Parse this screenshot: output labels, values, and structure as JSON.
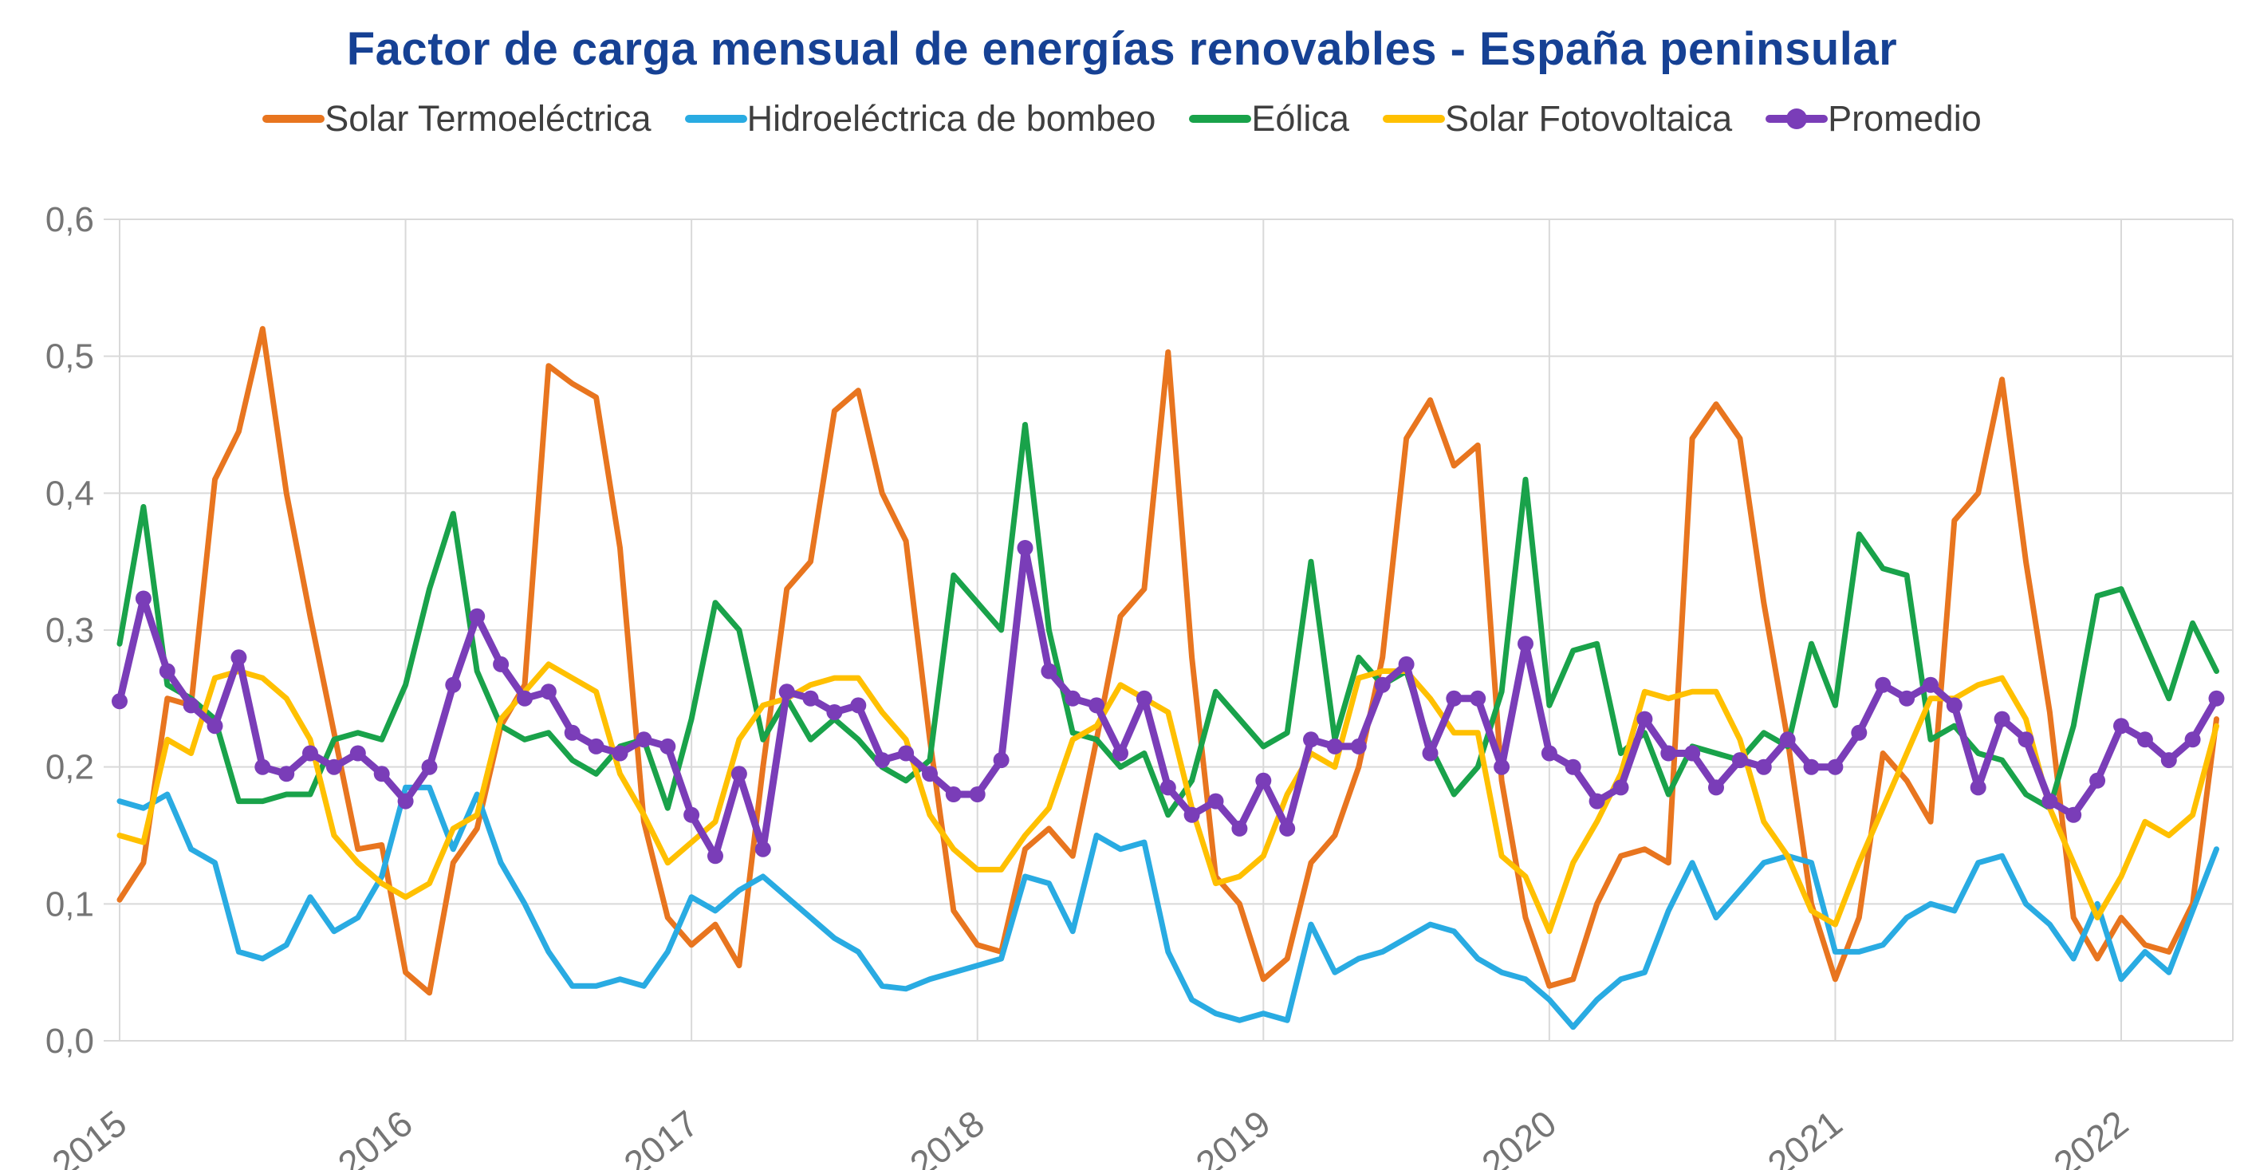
{
  "title": {
    "text": "Factor de carga mensual de energías renovables - España peninsular",
    "color": "#164194"
  },
  "axis": {
    "tick_color": "#757575",
    "grid_color": "#d9d9d9"
  },
  "chart_data": {
    "type": "line",
    "title": "Factor de carga mensual de energías renovables - España peninsular",
    "xlabel": "",
    "ylabel": "",
    "x_tick_labels": [
      "2015",
      "2016",
      "2017",
      "2018",
      "2019",
      "2020",
      "2021",
      "2022"
    ],
    "y_tick_labels": [
      "0,0",
      "0,1",
      "0,2",
      "0,3",
      "0,4",
      "0,5",
      "0,6"
    ],
    "y_ticks": [
      0,
      0.1,
      0.2,
      0.3,
      0.4,
      0.5,
      0.6
    ],
    "ylim": [
      0,
      0.6
    ],
    "x_start": "2015-01",
    "x_end": "2022-05",
    "months_per_tick": 12,
    "grid": true,
    "legend_position": "top",
    "series": [
      {
        "name": "Solar Termoeléctrica",
        "color": "#E8751F",
        "marker": false,
        "values": [
          0.103,
          0.13,
          0.25,
          0.245,
          0.41,
          0.445,
          0.52,
          0.4,
          0.31,
          0.225,
          0.14,
          0.143,
          0.05,
          0.035,
          0.13,
          0.155,
          0.23,
          0.26,
          0.493,
          0.48,
          0.47,
          0.36,
          0.16,
          0.09,
          0.07,
          0.085,
          0.055,
          0.2,
          0.33,
          0.35,
          0.46,
          0.475,
          0.4,
          0.365,
          0.22,
          0.095,
          0.07,
          0.065,
          0.14,
          0.155,
          0.135,
          0.22,
          0.31,
          0.33,
          0.503,
          0.28,
          0.12,
          0.1,
          0.045,
          0.06,
          0.13,
          0.15,
          0.2,
          0.28,
          0.44,
          0.468,
          0.42,
          0.435,
          0.19,
          0.09,
          0.04,
          0.045,
          0.1,
          0.135,
          0.14,
          0.13,
          0.44,
          0.465,
          0.44,
          0.32,
          0.22,
          0.1,
          0.045,
          0.09,
          0.21,
          0.19,
          0.16,
          0.38,
          0.4,
          0.483,
          0.35,
          0.24,
          0.09,
          0.06,
          0.09,
          0.07,
          0.065,
          0.1,
          0.235
        ]
      },
      {
        "name": "Hidroeléctrica de bombeo",
        "color": "#29ABE2",
        "marker": false,
        "values": [
          0.175,
          0.17,
          0.18,
          0.14,
          0.13,
          0.065,
          0.06,
          0.07,
          0.105,
          0.08,
          0.09,
          0.12,
          0.185,
          0.185,
          0.14,
          0.18,
          0.13,
          0.1,
          0.065,
          0.04,
          0.04,
          0.045,
          0.04,
          0.065,
          0.105,
          0.095,
          0.11,
          0.12,
          0.105,
          0.09,
          0.075,
          0.065,
          0.04,
          0.038,
          0.045,
          0.05,
          0.055,
          0.06,
          0.12,
          0.115,
          0.08,
          0.15,
          0.14,
          0.145,
          0.065,
          0.03,
          0.02,
          0.015,
          0.02,
          0.015,
          0.085,
          0.05,
          0.06,
          0.065,
          0.075,
          0.085,
          0.08,
          0.06,
          0.05,
          0.045,
          0.03,
          0.01,
          0.03,
          0.045,
          0.05,
          0.095,
          0.13,
          0.09,
          0.11,
          0.13,
          0.135,
          0.13,
          0.065,
          0.065,
          0.07,
          0.09,
          0.1,
          0.095,
          0.13,
          0.135,
          0.1,
          0.085,
          0.06,
          0.1,
          0.045,
          0.065,
          0.05,
          0.095,
          0.14
        ]
      },
      {
        "name": "Eólica",
        "color": "#19A24A",
        "marker": false,
        "values": [
          0.29,
          0.39,
          0.26,
          0.25,
          0.235,
          0.175,
          0.175,
          0.18,
          0.18,
          0.22,
          0.225,
          0.22,
          0.26,
          0.33,
          0.385,
          0.27,
          0.23,
          0.22,
          0.225,
          0.205,
          0.195,
          0.215,
          0.22,
          0.17,
          0.235,
          0.32,
          0.3,
          0.22,
          0.25,
          0.22,
          0.235,
          0.22,
          0.2,
          0.19,
          0.205,
          0.34,
          0.32,
          0.3,
          0.45,
          0.3,
          0.225,
          0.22,
          0.2,
          0.21,
          0.165,
          0.19,
          0.255,
          0.235,
          0.215,
          0.225,
          0.35,
          0.22,
          0.28,
          0.26,
          0.27,
          0.215,
          0.18,
          0.2,
          0.255,
          0.41,
          0.245,
          0.285,
          0.29,
          0.21,
          0.225,
          0.18,
          0.215,
          0.21,
          0.205,
          0.225,
          0.215,
          0.29,
          0.245,
          0.37,
          0.345,
          0.34,
          0.22,
          0.23,
          0.21,
          0.205,
          0.18,
          0.17,
          0.23,
          0.325,
          0.33,
          0.29,
          0.25,
          0.305,
          0.27
        ]
      },
      {
        "name": "Solar Fotovoltaica",
        "color": "#FFC000",
        "marker": false,
        "values": [
          0.15,
          0.145,
          0.22,
          0.21,
          0.265,
          0.27,
          0.265,
          0.25,
          0.22,
          0.15,
          0.13,
          0.115,
          0.105,
          0.115,
          0.155,
          0.165,
          0.235,
          0.255,
          0.275,
          0.265,
          0.255,
          0.195,
          0.165,
          0.13,
          0.145,
          0.16,
          0.22,
          0.245,
          0.25,
          0.26,
          0.265,
          0.265,
          0.24,
          0.22,
          0.165,
          0.14,
          0.125,
          0.125,
          0.15,
          0.17,
          0.22,
          0.23,
          0.26,
          0.25,
          0.24,
          0.17,
          0.115,
          0.12,
          0.135,
          0.18,
          0.21,
          0.2,
          0.265,
          0.27,
          0.27,
          0.25,
          0.225,
          0.225,
          0.135,
          0.12,
          0.08,
          0.13,
          0.16,
          0.195,
          0.255,
          0.25,
          0.255,
          0.255,
          0.22,
          0.16,
          0.135,
          0.095,
          0.085,
          0.13,
          0.17,
          0.21,
          0.25,
          0.25,
          0.26,
          0.265,
          0.235,
          0.17,
          0.13,
          0.09,
          0.12,
          0.16,
          0.15,
          0.165,
          0.23
        ]
      },
      {
        "name": "Promedio",
        "color": "#7A3DB8",
        "marker": true,
        "values": [
          0.248,
          0.323,
          0.27,
          0.245,
          0.23,
          0.28,
          0.2,
          0.195,
          0.21,
          0.2,
          0.21,
          0.195,
          0.175,
          0.2,
          0.26,
          0.31,
          0.275,
          0.25,
          0.255,
          0.225,
          0.215,
          0.21,
          0.22,
          0.215,
          0.165,
          0.135,
          0.195,
          0.14,
          0.255,
          0.25,
          0.24,
          0.245,
          0.205,
          0.21,
          0.195,
          0.18,
          0.18,
          0.205,
          0.36,
          0.27,
          0.25,
          0.245,
          0.21,
          0.25,
          0.185,
          0.165,
          0.175,
          0.155,
          0.19,
          0.155,
          0.22,
          0.215,
          0.215,
          0.26,
          0.275,
          0.21,
          0.25,
          0.25,
          0.2,
          0.29,
          0.21,
          0.2,
          0.175,
          0.185,
          0.235,
          0.21,
          0.21,
          0.185,
          0.205,
          0.2,
          0.22,
          0.2,
          0.2,
          0.225,
          0.26,
          0.25,
          0.26,
          0.245,
          0.185,
          0.235,
          0.22,
          0.175,
          0.165,
          0.19,
          0.23,
          0.22,
          0.205,
          0.22,
          0.25
        ]
      }
    ]
  }
}
